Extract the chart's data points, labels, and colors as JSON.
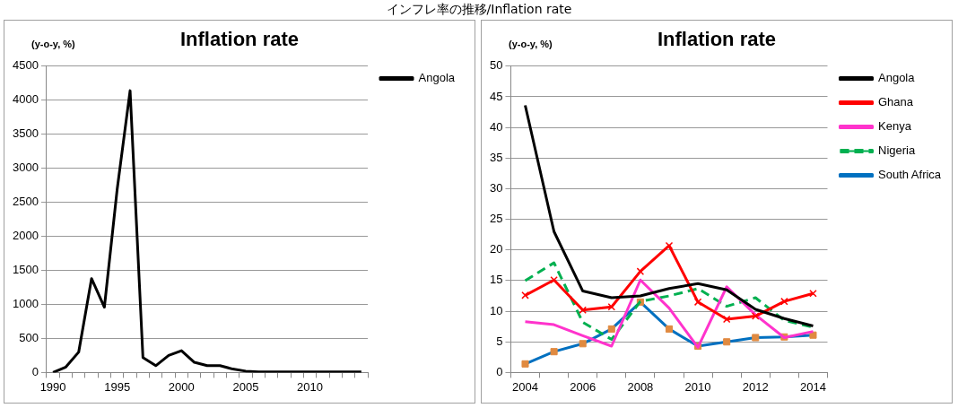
{
  "chart_data": [
    {
      "type": "line",
      "title": "Inflation rate",
      "ylabel": "(y-o-y, %)",
      "annotations": [
        "インフレ率の推移/Inflation rate"
      ],
      "categories": [
        "1990",
        null,
        null,
        null,
        null,
        "1995",
        null,
        null,
        null,
        null,
        "2000",
        null,
        null,
        null,
        null,
        "2005",
        null,
        null,
        null,
        null,
        "2010",
        null,
        null,
        null,
        null
      ],
      "series": [
        {
          "name": "Angola",
          "color": "#000000",
          "values": [
            0,
            80,
            300,
            1380,
            960,
            2700,
            4140,
            220,
            100,
            250,
            320,
            150,
            100,
            100,
            50,
            20,
            10,
            10,
            10,
            10,
            10,
            10,
            10,
            10,
            10
          ]
        }
      ],
      "ylim": [
        0,
        4500
      ],
      "yticks": [
        0,
        500,
        1000,
        1500,
        2000,
        2500,
        3000,
        3500,
        4000,
        4500
      ],
      "grid": "y",
      "legend": "right",
      "line_style": "solid",
      "marker": "none"
    },
    {
      "type": "line",
      "title": "Inflation rate",
      "ylabel": "(y-o-y, %)",
      "categories": [
        "2004",
        null,
        "2006",
        null,
        "2008",
        null,
        "2010",
        null,
        "2012",
        null,
        "2014"
      ],
      "series": [
        {
          "name": "Angola",
          "color": "#000000",
          "values": [
            43.6,
            23,
            13.3,
            12.2,
            12.5,
            13.7,
            14.5,
            13.5,
            10.3,
            8.8,
            7.6
          ]
        },
        {
          "name": "Ghana",
          "color": "#ff0000",
          "marker": "cross",
          "values": [
            12.6,
            15.1,
            10.2,
            10.7,
            16.5,
            20.7,
            11.5,
            8.7,
            9.2,
            11.6,
            12.9
          ]
        },
        {
          "name": "Kenya",
          "color": "#ff33cc",
          "values": [
            8.3,
            7.8,
            6.0,
            4.3,
            15.1,
            10.5,
            4.1,
            14.0,
            9.4,
            5.7,
            6.7
          ]
        },
        {
          "name": "Nigeria",
          "color": "#00b050",
          "line_style": "dashed",
          "values": [
            15.0,
            17.9,
            8.2,
            5.4,
            11.6,
            12.5,
            13.7,
            10.8,
            12.2,
            8.5,
            7.4
          ]
        },
        {
          "name": "South Africa",
          "color": "#0070c0",
          "marker": "square",
          "colors": [
            "#e08a40",
            "#e08a40",
            "#e08a40",
            "#e08a40",
            "#e08a40",
            "#e08a40",
            "#e08a40",
            "#e08a40",
            "#e08a40",
            "#e08a40",
            "#e08a40"
          ],
          "values": [
            1.4,
            3.4,
            4.7,
            7.1,
            11.5,
            7.1,
            4.3,
            5.0,
            5.7,
            5.8,
            6.1
          ]
        }
      ],
      "ylim": [
        0,
        50
      ],
      "yticks": [
        0,
        5,
        10,
        15,
        20,
        25,
        30,
        35,
        40,
        45,
        50
      ],
      "grid": "y",
      "legend": "right",
      "line_style": "solid",
      "marker": "none"
    }
  ]
}
